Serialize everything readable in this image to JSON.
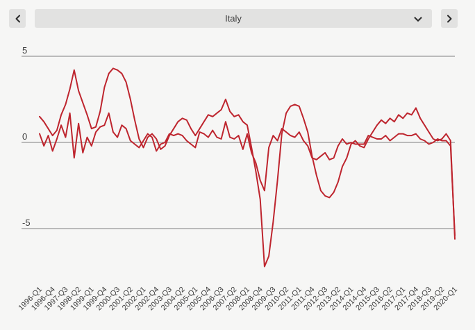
{
  "toolbar": {
    "selected_country": "Italy",
    "prev_icon": "chevron-left",
    "next_icon": "chevron-right",
    "dropdown_icon": "chevron-down"
  },
  "colors": {
    "page_bg": "#f6f6f5",
    "control_bg": "#e2e2e1",
    "text": "#3d3d3d",
    "grid": "#7f7f7f",
    "accent_red": "#be252e"
  },
  "chart_data": {
    "type": "line",
    "x_unit": "quarter",
    "x_start": "1996-Q1",
    "x_end": "2020-Q1",
    "x_tick_step_quarters": 3,
    "x_tick_labels": [
      "1996-Q1",
      "1996-Q4",
      "1997-Q3",
      "1998-Q2",
      "1999-Q1",
      "1999-Q4",
      "2000-Q3",
      "2001-Q2",
      "2002-Q1",
      "2002-Q4",
      "2003-Q3",
      "2004-Q2",
      "2005-Q1",
      "2005-Q4",
      "2006-Q3",
      "2007-Q2",
      "2008-Q1",
      "2008-Q4",
      "2009-Q3",
      "2010-Q2",
      "2011-Q1",
      "2011-Q4",
      "2012-Q3",
      "2013-Q2",
      "2014-Q1",
      "2014-Q4",
      "2015-Q3",
      "2016-Q2",
      "2017-Q1",
      "2017-Q4",
      "2018-Q3",
      "2019-Q2",
      "2020-Q1"
    ],
    "y_ticks": [
      5,
      0,
      -5
    ],
    "y_tick_labels": [
      "5",
      "0",
      "-5"
    ],
    "ylim": [
      -7.8,
      5
    ],
    "grid": true,
    "legend": "none",
    "line_color": "#be252e",
    "series": [
      {
        "name": "line-1",
        "values": [
          1.5,
          1.2,
          0.8,
          0.4,
          0.7,
          1.6,
          2.2,
          3.1,
          4.2,
          3.0,
          2.3,
          1.6,
          0.8,
          0.9,
          1.8,
          3.2,
          4.0,
          4.3,
          4.2,
          4.0,
          3.5,
          2.5,
          1.3,
          0.2,
          -0.3,
          0.3,
          0.5,
          0.2,
          -0.4,
          -0.2,
          0.4,
          0.8,
          1.2,
          1.4,
          1.3,
          0.8,
          0.4,
          0.8,
          1.2,
          1.6,
          1.5,
          1.7,
          1.9,
          2.5,
          1.8,
          1.5,
          1.6,
          1.2,
          1.0,
          -0.3,
          -1.7,
          -3.3,
          -7.2,
          -6.6,
          -4.6,
          -2.2,
          0.5,
          1.7,
          2.1,
          2.2,
          2.1,
          1.4,
          0.6,
          -0.8,
          -1.9,
          -2.8,
          -3.1,
          -3.2,
          -2.9,
          -2.3,
          -1.4,
          -0.9,
          -0.1,
          0.1,
          -0.2,
          -0.3,
          0.2,
          0.6,
          1.0,
          1.3,
          1.1,
          1.4,
          1.2,
          1.6,
          1.4,
          1.7,
          1.6,
          2.0,
          1.4,
          1.0,
          0.6,
          0.2,
          0.1,
          0.2,
          0.5,
          0.1,
          -5.6
        ]
      },
      {
        "name": "line-2",
        "values": [
          0.5,
          -0.2,
          0.4,
          -0.5,
          0.2,
          1.0,
          0.3,
          1.7,
          -0.9,
          1.1,
          -0.6,
          0.3,
          -0.2,
          0.6,
          0.9,
          1.0,
          1.7,
          0.6,
          0.3,
          1.0,
          0.8,
          0.1,
          -0.1,
          -0.3,
          0.1,
          0.5,
          0.3,
          -0.5,
          -0.1,
          0.0,
          0.5,
          0.4,
          0.5,
          0.4,
          0.1,
          -0.1,
          -0.3,
          0.6,
          0.5,
          0.3,
          0.7,
          0.3,
          0.2,
          1.2,
          0.3,
          0.2,
          0.4,
          -0.4,
          0.5,
          -0.6,
          -1.2,
          -2.2,
          -2.8,
          -0.3,
          0.4,
          0.1,
          0.8,
          0.6,
          0.4,
          0.3,
          0.6,
          0.1,
          -0.2,
          -0.9,
          -1.0,
          -0.8,
          -0.6,
          -1.0,
          -0.9,
          -0.2,
          0.2,
          -0.1,
          0.0,
          -0.1,
          -0.1,
          -0.1,
          0.4,
          0.3,
          0.2,
          0.2,
          0.4,
          0.1,
          0.3,
          0.5,
          0.5,
          0.4,
          0.4,
          0.5,
          0.2,
          0.1,
          -0.1,
          0.0,
          0.2,
          0.1,
          0.1,
          -0.2,
          -5.4
        ]
      }
    ]
  }
}
